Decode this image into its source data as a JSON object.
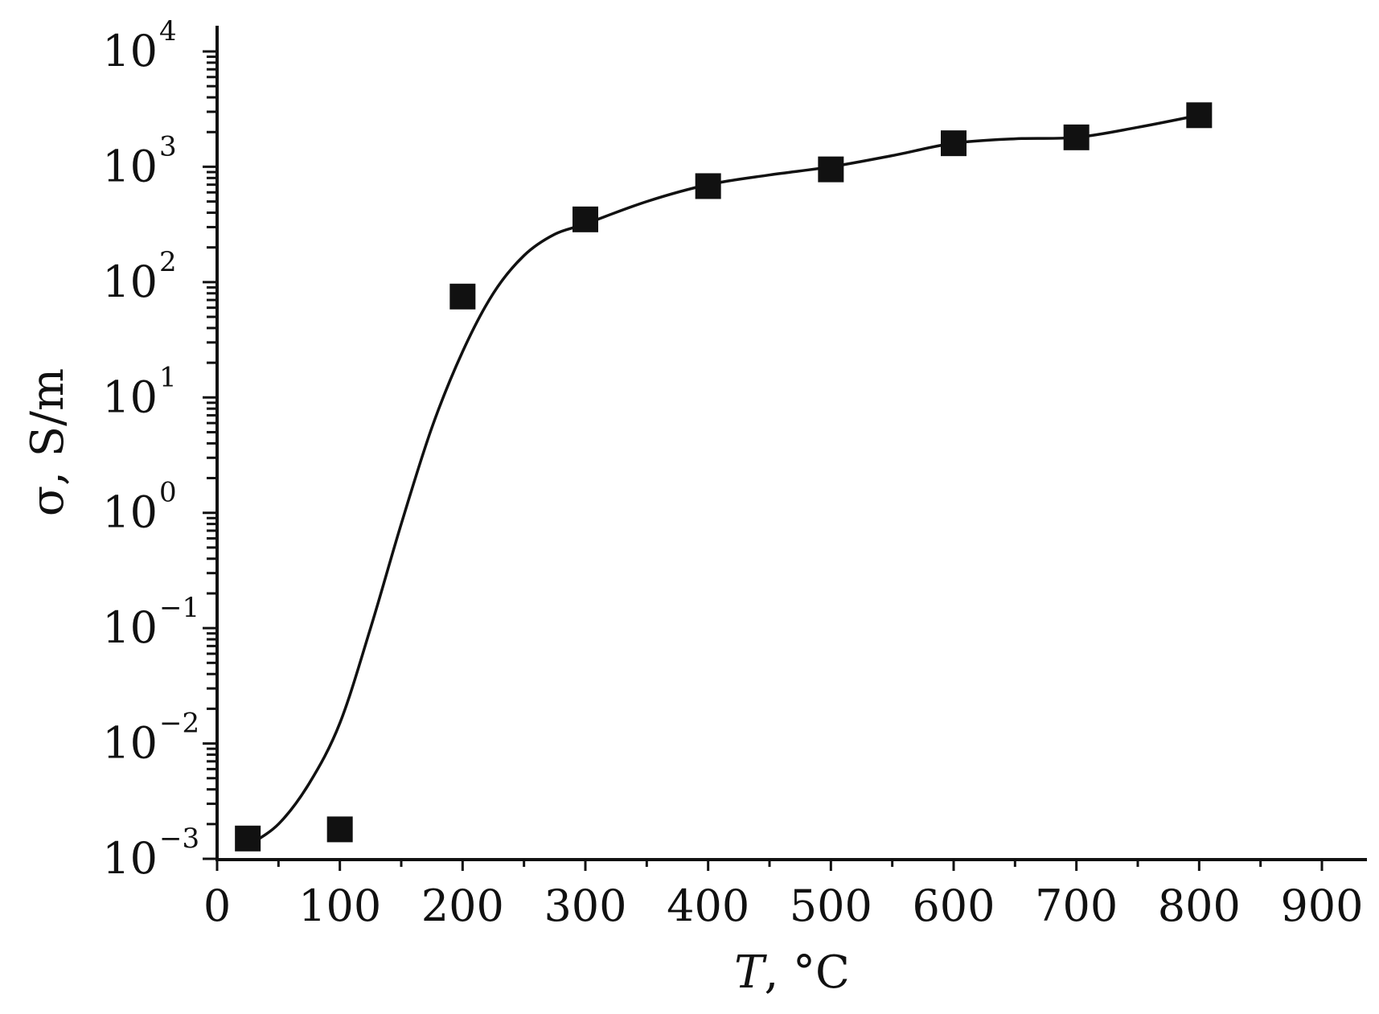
{
  "chart_data": {
    "type": "scatter",
    "title": "",
    "xlabel": "T, °C",
    "xlabel_var": "T",
    "xlabel_unit": ", °C",
    "ylabel": "σ, S/m",
    "x_scale": "linear",
    "y_scale": "log",
    "xlim": [
      0,
      930
    ],
    "ylim": [
      0.001,
      10000
    ],
    "x_ticks": [
      0,
      100,
      200,
      300,
      400,
      500,
      600,
      700,
      800,
      900
    ],
    "x_tick_labels": [
      "0",
      "100",
      "200",
      "300",
      "400",
      "500",
      "600",
      "700",
      "800",
      "900"
    ],
    "y_ticks": [
      0.001,
      0.01,
      0.1,
      1,
      10,
      100,
      1000,
      10000
    ],
    "y_tick_labels": [
      {
        "base": "10",
        "exp": "−3"
      },
      {
        "base": "10",
        "exp": "−2"
      },
      {
        "base": "10",
        "exp": "−1"
      },
      {
        "base": "10",
        "exp": "0"
      },
      {
        "base": "10",
        "exp": "1"
      },
      {
        "base": "10",
        "exp": "2"
      },
      {
        "base": "10",
        "exp": "3"
      },
      {
        "base": "10",
        "exp": "4"
      }
    ],
    "grid": false,
    "legend": "none",
    "series": [
      {
        "marker": "square",
        "color": "#111111",
        "x": [
          25,
          100,
          200,
          300,
          400,
          500,
          600,
          700,
          800
        ],
        "y": [
          0.0015,
          0.0018,
          75,
          350,
          680,
          950,
          1600,
          1800,
          2800
        ]
      }
    ],
    "fit_curve": {
      "color": "#111111",
      "x": [
        25,
        50,
        75,
        100,
        125,
        150,
        175,
        200,
        225,
        250,
        275,
        300,
        350,
        400,
        450,
        500,
        550,
        600,
        650,
        700,
        750,
        800
      ],
      "y": [
        0.0013,
        0.002,
        0.0045,
        0.015,
        0.1,
        0.8,
        5.5,
        25,
        80,
        170,
        260,
        320,
        500,
        700,
        850,
        1000,
        1250,
        1600,
        1750,
        1800,
        2200,
        2800
      ]
    }
  }
}
